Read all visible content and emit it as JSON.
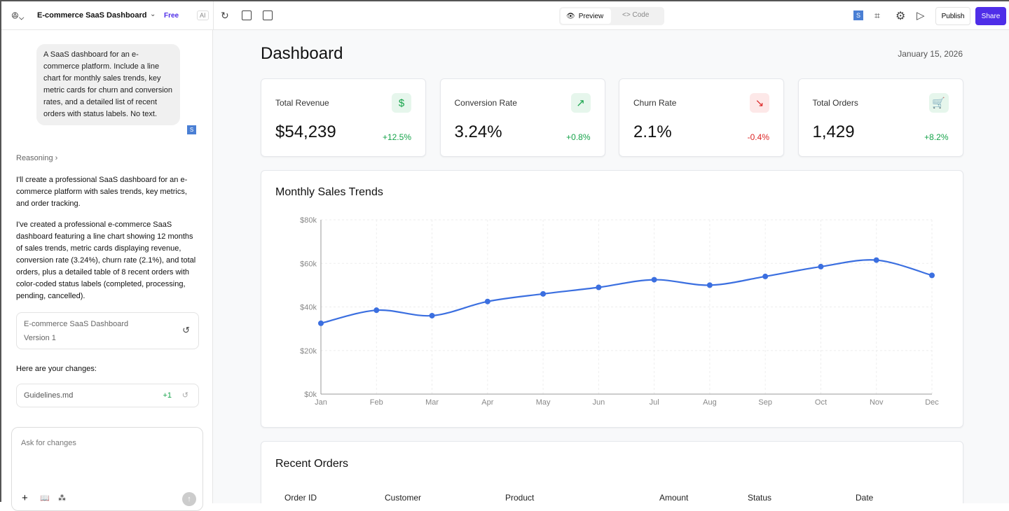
{
  "topbar": {
    "project_title": "E-commerce SaaS Dashboard",
    "plan_badge": "Free",
    "ai_label": "AI",
    "preview_label": "Preview",
    "code_label": "Code",
    "avatar_initial": "S",
    "publish_label": "Publish",
    "share_label": "Share",
    "accent": "#4f2ee8"
  },
  "chat": {
    "user_message": "A SaaS dashboard for an e-commerce platform. Include a line chart for monthly sales trends, key metric cards for churn and conversion rates, and a detailed list of recent orders with status labels. No text.",
    "user_avatar": "S",
    "reasoning_label": "Reasoning",
    "reply_1": "I'll create a professional SaaS dashboard for an e-commerce platform with sales trends, key metrics, and order tracking.",
    "reply_2": "I've created a professional e-commerce SaaS dashboard featuring a line chart showing 12 months of sales trends, metric cards displaying revenue, conversion rate (3.24%), churn rate (2.1%), and total orders, plus a detailed table of 8 recent orders with color-coded status labels (completed, processing, pending, cancelled).",
    "version_title": "E-commerce SaaS Dashboard",
    "version_label": "Version 1",
    "changes_label": "Here are your changes:",
    "file_name": "Guidelines.md",
    "file_diff": "+1",
    "input_placeholder": "Ask for changes"
  },
  "dashboard": {
    "title": "Dashboard",
    "date": "January 15, 2026",
    "metrics": [
      {
        "label": "Total Revenue",
        "value": "$54,239",
        "change": "+12.5%",
        "icon": "dollar-icon",
        "color": "#16a34a"
      },
      {
        "label": "Conversion Rate",
        "value": "3.24%",
        "change": "+0.8%",
        "icon": "trending-up-icon",
        "color": "#16a34a"
      },
      {
        "label": "Churn Rate",
        "value": "2.1%",
        "change": "-0.4%",
        "icon": "trending-down-icon",
        "color": "#dc2626"
      },
      {
        "label": "Total Orders",
        "value": "1,429",
        "change": "+8.2%",
        "icon": "cart-icon",
        "color": "#16a34a"
      }
    ],
    "chart_title": "Monthly Sales Trends",
    "orders_title": "Recent Orders",
    "order_columns": [
      "Order ID",
      "Customer",
      "Product",
      "Amount",
      "Status",
      "Date"
    ]
  },
  "chart_data": {
    "type": "line",
    "categories": [
      "Jan",
      "Feb",
      "Mar",
      "Apr",
      "May",
      "Jun",
      "Jul",
      "Aug",
      "Sep",
      "Oct",
      "Nov",
      "Dec"
    ],
    "values": [
      32500,
      38500,
      36000,
      42500,
      46000,
      49000,
      52500,
      50000,
      54000,
      58500,
      61500,
      54500
    ],
    "ylim": [
      0,
      80000
    ],
    "yticks": [
      "$0k",
      "$20k",
      "$40k",
      "$60k",
      "$80k"
    ],
    "grid": true,
    "color": "#3b6fe0"
  }
}
